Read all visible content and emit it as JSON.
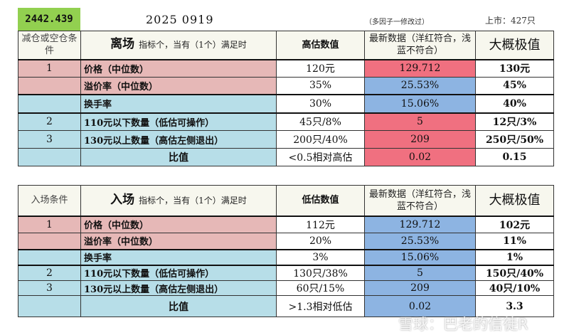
{
  "header": {
    "code": "2442.439",
    "date": "2025  0919",
    "note": "（多因子一修改过）",
    "listed": "上市：427只"
  },
  "colors": {
    "green": "#92d050",
    "pink": "#e6b8b7",
    "light_blue": "#b7dee8",
    "red": "#f07080",
    "blue": "#8db4e2"
  },
  "exit": {
    "head": {
      "cond": "减仓或空仓条件",
      "title": "离场",
      "subtitle": "指标个，当有（1个）满足时",
      "threshold": "高估数值",
      "latest": "最新数据（洋红符合，浅蓝不符合）",
      "max": "大概极值"
    },
    "rows": [
      {
        "no": "1",
        "name": "价格（中位数）",
        "threshold": "120元",
        "latest": "129.712",
        "latest_match": true,
        "max": "130元",
        "group": "pink"
      },
      {
        "no": "",
        "name": "溢价率（中位数）",
        "threshold": "35%",
        "latest": "25.53%",
        "latest_match": false,
        "max": "45%",
        "group": "pink"
      },
      {
        "no": "",
        "name": "换手率",
        "threshold": "30%",
        "latest": "15.06%",
        "latest_match": false,
        "max": "40%",
        "group": "lblue"
      },
      {
        "no": "2",
        "name": "110元以下数量（低估可操作）",
        "threshold": "45只/8%",
        "latest": "5",
        "latest_match": true,
        "max": "12只/3%",
        "group": "lblue"
      },
      {
        "no": "3",
        "name": "130元以上数量（高估左侧退出）",
        "threshold": "200只/40%",
        "latest": "209",
        "latest_match": true,
        "max": "250只/50%",
        "group": "lblue"
      },
      {
        "no": "",
        "name": "比值",
        "threshold": "<0.5相对高估",
        "latest": "0.02",
        "latest_match": true,
        "max": "0.15",
        "group": "lblue"
      }
    ]
  },
  "entry": {
    "head": {
      "cond": "入场条件",
      "title": "入场",
      "subtitle": "指标个，当有（1个）满足时",
      "threshold": "低估数值",
      "latest": "最新数据（洋红符合，浅蓝不符合）",
      "max": "大概极值"
    },
    "rows": [
      {
        "no": "1",
        "name": "价格（中位数）",
        "threshold": "112元",
        "latest": "129.712",
        "latest_match": false,
        "max": "102元",
        "group": "pink"
      },
      {
        "no": "",
        "name": "溢价率（中位数）",
        "threshold": "20%",
        "latest": "25.53%",
        "latest_match": false,
        "max": "11%",
        "group": "pink"
      },
      {
        "no": "",
        "name": "换手率",
        "threshold": "3%",
        "latest": "15.06%",
        "latest_match": false,
        "max": "1%",
        "group": "lblue"
      },
      {
        "no": "2",
        "name": "110元以下数量（低估可操作）",
        "threshold": "130只/38%",
        "latest": "5",
        "latest_match": false,
        "max": "150只/40%",
        "group": "lblue"
      },
      {
        "no": "3",
        "name": "130元以上数量（高估左侧退出）",
        "threshold": "60只/15%",
        "latest": "209",
        "latest_match": false,
        "max": "40只/10%",
        "group": "lblue"
      },
      {
        "no": "",
        "name": "比值",
        "threshold": ">1.3相对低估",
        "latest": "0.02",
        "latest_match": false,
        "max": "3.3",
        "group": "lblue"
      }
    ]
  },
  "watermark": "雪球：巴老的信徒R"
}
